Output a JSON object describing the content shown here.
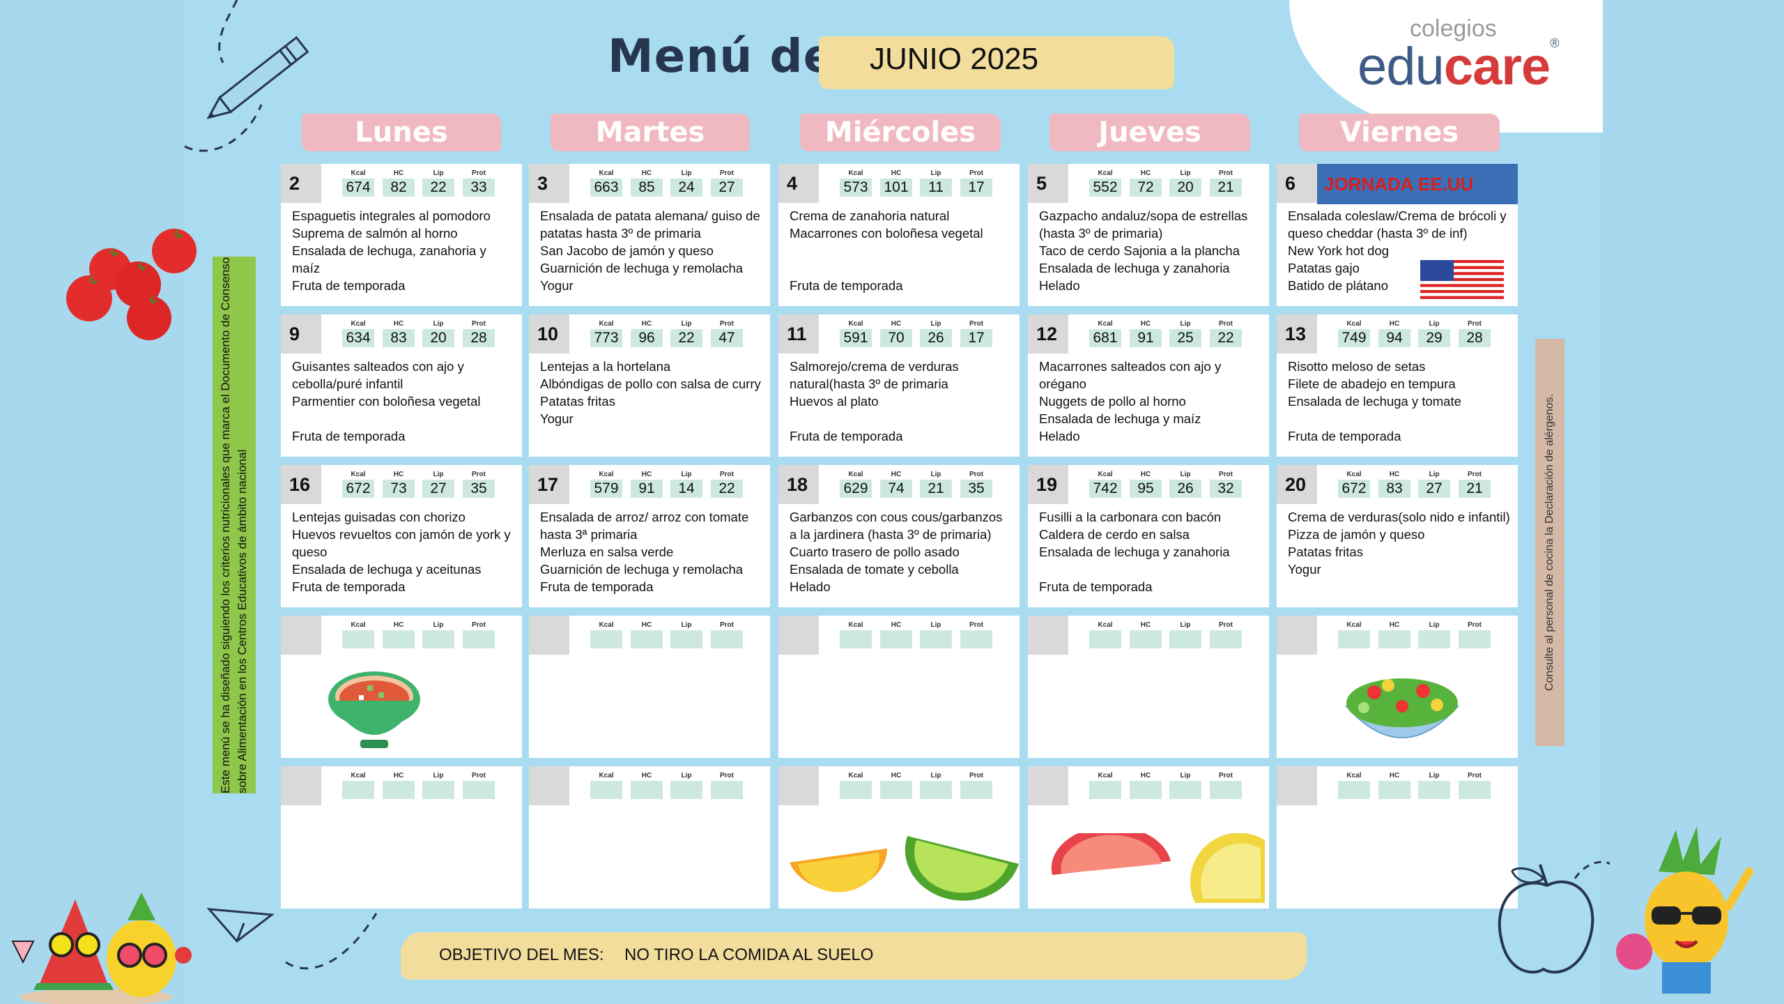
{
  "header": {
    "title": "Menú de:",
    "month": "JUNIO 2025"
  },
  "logo": {
    "small": "colegios",
    "edu": "edu",
    "care": "care",
    "reg": "®"
  },
  "days": [
    "Lunes",
    "Martes",
    "Miércoles",
    "Jueves",
    "Viernes"
  ],
  "nutrient_labels": [
    "Kcal",
    "HC",
    "Lip",
    "Prot"
  ],
  "cells": [
    {
      "day": "2",
      "values": [
        "674",
        "82",
        "22",
        "33"
      ],
      "items": [
        "Espaguetis integrales al pomodoro",
        "Suprema de salmón al horno",
        "Ensalada de lechuga, zanahoria y maíz",
        "Fruta de temporada"
      ]
    },
    {
      "day": "3",
      "values": [
        "663",
        "85",
        "24",
        "27"
      ],
      "items": [
        "Ensalada de patata alemana/ guiso de patatas hasta 3º de primaria",
        "San Jacobo de jamón y queso",
        "Guarnición de lechuga y remolacha",
        "Yogur"
      ]
    },
    {
      "day": "4",
      "values": [
        "573",
        "101",
        "11",
        "17"
      ],
      "items": [
        "Crema de zanahoria natural",
        "Macarrones con boloñesa vegetal",
        "",
        "",
        "Fruta de temporada"
      ]
    },
    {
      "day": "5",
      "values": [
        "552",
        "72",
        "20",
        "21"
      ],
      "items": [
        "Gazpacho andaluz/sopa de estrellas (hasta 3º de primaria)",
        "Taco de cerdo Sajonia a la plancha",
        "Ensalada de lechuga y zanahoria",
        "Helado"
      ]
    },
    {
      "day": "6",
      "jornada": "JORNADA EE.UU",
      "values": [
        "",
        "",
        "",
        ""
      ],
      "items": [
        "Ensalada coleslaw/Crema de brócoli y queso cheddar (hasta 3º de inf)",
        "New York hot dog",
        "Patatas gajo",
        "Batido de plátano"
      ]
    },
    {
      "day": "9",
      "values": [
        "634",
        "83",
        "20",
        "28"
      ],
      "items": [
        "Guisantes salteados con ajo y cebolla/puré infantil",
        "Parmentier con boloñesa vegetal",
        "",
        "Fruta de temporada"
      ]
    },
    {
      "day": "10",
      "values": [
        "773",
        "96",
        "22",
        "47"
      ],
      "items": [
        "Lentejas a la hortelana",
        "Albóndigas de pollo con salsa de curry",
        "Patatas fritas",
        "Yogur"
      ]
    },
    {
      "day": "11",
      "values": [
        "591",
        "70",
        "26",
        "17"
      ],
      "items": [
        "Salmorejo/crema de verduras natural(hasta 3º de primaria",
        "Huevos al plato",
        "",
        "Fruta de temporada"
      ]
    },
    {
      "day": "12",
      "values": [
        "681",
        "91",
        "25",
        "22"
      ],
      "items": [
        "Macarrones salteados con ajo y orégano",
        "Nuggets de pollo al horno",
        "Ensalada de lechuga y maíz",
        "Helado"
      ]
    },
    {
      "day": "13",
      "values": [
        "749",
        "94",
        "29",
        "28"
      ],
      "items": [
        "Risotto meloso de setas",
        "Filete de abadejo en tempura",
        "Ensalada de lechuga y tomate",
        "",
        "Fruta de temporada"
      ]
    },
    {
      "day": "16",
      "values": [
        "672",
        "73",
        "27",
        "35"
      ],
      "items": [
        "Lentejas guisadas con chorizo",
        "Huevos revueltos con jamón de york y queso",
        "Ensalada de lechuga y aceitunas",
        "Fruta de temporada"
      ]
    },
    {
      "day": "17",
      "values": [
        "579",
        "91",
        "14",
        "22"
      ],
      "items": [
        "Ensalada de arroz/ arroz con tomate hasta 3ª primaria",
        "Merluza en salsa verde",
        "Guarnición de lechuga y remolacha",
        "Fruta de temporada"
      ]
    },
    {
      "day": "18",
      "values": [
        "629",
        "74",
        "21",
        "35"
      ],
      "items": [
        "Garbanzos con cous cous/garbanzos a la jardinera (hasta 3º de primaria)",
        "Cuarto trasero de pollo asado",
        "Ensalada de tomate y cebolla",
        "Helado"
      ]
    },
    {
      "day": "19",
      "values": [
        "742",
        "95",
        "26",
        "32"
      ],
      "items": [
        "Fusilli a la carbonara con bacón",
        "Caldera de cerdo en salsa",
        "Ensalada de lechuga y zanahoria",
        "",
        "Fruta de temporada"
      ]
    },
    {
      "day": "20",
      "values": [
        "672",
        "83",
        "27",
        "21"
      ],
      "items": [
        "Crema de verduras(solo nido e infantil)",
        "Pizza de jamón y queso",
        "Patatas fritas",
        "Yogur"
      ]
    },
    {
      "day": "",
      "values": [
        "",
        "",
        "",
        ""
      ],
      "items": []
    },
    {
      "day": "",
      "values": [
        "",
        "",
        "",
        ""
      ],
      "items": []
    },
    {
      "day": "",
      "values": [
        "",
        "",
        "",
        ""
      ],
      "items": []
    },
    {
      "day": "",
      "values": [
        "",
        "",
        "",
        ""
      ],
      "items": []
    },
    {
      "day": "",
      "values": [
        "",
        "",
        "",
        ""
      ],
      "items": []
    },
    {
      "day": "",
      "values": [
        "",
        "",
        "",
        ""
      ],
      "items": []
    },
    {
      "day": "",
      "values": [
        "",
        "",
        "",
        ""
      ],
      "items": []
    },
    {
      "day": "",
      "values": [
        "",
        "",
        "",
        ""
      ],
      "items": []
    },
    {
      "day": "",
      "values": [
        "",
        "",
        "",
        ""
      ],
      "items": []
    },
    {
      "day": "",
      "values": [
        "",
        "",
        "",
        ""
      ],
      "items": []
    }
  ],
  "left_note": "Este menú se ha diseñado siguiendo los criterios nutricionales que marca el Documento de Consenso sobre Alimentación en los Centros Educativos de ámbito nacional",
  "right_note": "Consulte al personal de cocina la Declaración de alérgenos.",
  "objective": {
    "label": "OBJETIVO DEL MES:",
    "value": "NO TIRO LA COMIDA AL SUELO"
  },
  "colors": {
    "background": "#a8d8ee",
    "day_header": "#f0b8c0",
    "band": "#f3dd9d",
    "nutrient_box": "#cde9dd",
    "green_bar": "#8ec74a",
    "jornada_bg": "#3b6fb5",
    "jornada_text": "#d91e1e"
  },
  "decorations": [
    "pencil-icon",
    "tomatoes-icon",
    "gazpacho-bowl-icon",
    "salad-bowl-icon",
    "usa-flag-icon",
    "orange-slice-icon",
    "lime-slice-icon",
    "grapefruit-slice-icon",
    "lemon-slice-icon",
    "fruit-characters-icon",
    "pineapple-character-icon",
    "paper-plane-icon",
    "apple-sketch-icon"
  ]
}
